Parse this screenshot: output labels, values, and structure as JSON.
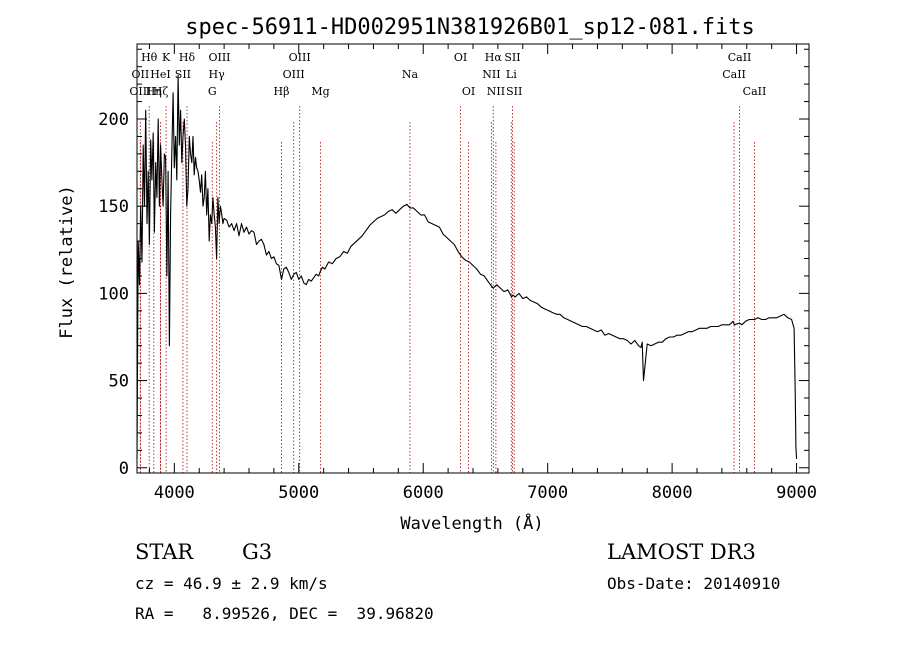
{
  "chart_data": {
    "type": "line",
    "title": "spec-56911-HD002951N381926B01_sp12-081.fits",
    "xlabel": "Wavelength (Å)",
    "ylabel": "Flux (relative)",
    "xlim": [
      3700,
      9100
    ],
    "ylim": [
      -3,
      243
    ],
    "x_ticks": [
      4000,
      5000,
      6000,
      7000,
      8000,
      9000
    ],
    "y_ticks": [
      0,
      50,
      100,
      150,
      200
    ],
    "grid": false,
    "legend": "none",
    "series": [
      {
        "name": "flux",
        "x": [
          3700,
          3710,
          3720,
          3730,
          3740,
          3750,
          3760,
          3770,
          3780,
          3790,
          3800,
          3810,
          3820,
          3830,
          3840,
          3850,
          3860,
          3870,
          3880,
          3890,
          3900,
          3910,
          3920,
          3930,
          3940,
          3950,
          3960,
          3970,
          3980,
          3990,
          4000,
          4010,
          4020,
          4030,
          4040,
          4050,
          4060,
          4070,
          4080,
          4090,
          4100,
          4110,
          4120,
          4130,
          4140,
          4150,
          4160,
          4170,
          4180,
          4190,
          4200,
          4210,
          4220,
          4230,
          4240,
          4250,
          4260,
          4270,
          4280,
          4290,
          4300,
          4310,
          4320,
          4330,
          4340,
          4350,
          4360,
          4370,
          4380,
          4390,
          4400,
          4420,
          4440,
          4460,
          4480,
          4500,
          4520,
          4540,
          4560,
          4580,
          4600,
          4620,
          4640,
          4660,
          4680,
          4700,
          4720,
          4740,
          4760,
          4780,
          4800,
          4820,
          4840,
          4861,
          4880,
          4900,
          4920,
          4940,
          4960,
          4980,
          5000,
          5020,
          5040,
          5060,
          5080,
          5100,
          5120,
          5140,
          5160,
          5175,
          5190,
          5210,
          5240,
          5270,
          5300,
          5330,
          5360,
          5390,
          5420,
          5450,
          5480,
          5510,
          5540,
          5570,
          5600,
          5630,
          5660,
          5690,
          5720,
          5750,
          5780,
          5810,
          5840,
          5870,
          5893,
          5920,
          5950,
          5980,
          6010,
          6040,
          6070,
          6100,
          6130,
          6160,
          6190,
          6220,
          6250,
          6280,
          6310,
          6340,
          6370,
          6400,
          6430,
          6460,
          6490,
          6520,
          6550,
          6563,
          6590,
          6620,
          6650,
          6680,
          6710,
          6720,
          6740,
          6770,
          6800,
          6830,
          6860,
          6890,
          6920,
          6950,
          6980,
          7010,
          7040,
          7070,
          7100,
          7130,
          7160,
          7190,
          7220,
          7250,
          7280,
          7310,
          7340,
          7370,
          7400,
          7430,
          7460,
          7490,
          7520,
          7550,
          7580,
          7610,
          7640,
          7670,
          7700,
          7730,
          7750,
          7760,
          7770,
          7800,
          7830,
          7860,
          7890,
          7920,
          7950,
          7980,
          8010,
          8040,
          8070,
          8100,
          8130,
          8160,
          8190,
          8220,
          8250,
          8280,
          8310,
          8340,
          8370,
          8400,
          8430,
          8460,
          8490,
          8500,
          8542,
          8560,
          8590,
          8620,
          8662,
          8690,
          8720,
          8750,
          8780,
          8810,
          8840,
          8870,
          8900,
          8930,
          8960,
          8980,
          8990,
          8995,
          9000
        ],
        "y": [
          5,
          130,
          105,
          150,
          118,
          185,
          150,
          205,
          140,
          170,
          128,
          188,
          165,
          192,
          135,
          175,
          155,
          200,
          150,
          185,
          165,
          150,
          180,
          178,
          110,
          170,
          70,
          145,
          180,
          215,
          172,
          190,
          165,
          225,
          185,
          205,
          175,
          190,
          200,
          185,
          150,
          160,
          190,
          180,
          175,
          190,
          168,
          178,
          172,
          170,
          165,
          158,
          168,
          150,
          155,
          170,
          145,
          160,
          130,
          145,
          140,
          155,
          145,
          138,
          120,
          155,
          140,
          150,
          146,
          140,
          143,
          142,
          138,
          140,
          136,
          140,
          133,
          140,
          135,
          138,
          134,
          136,
          135,
          128,
          130,
          131,
          128,
          122,
          124,
          120,
          121,
          117,
          116,
          108,
          114,
          115,
          112,
          108,
          111,
          112,
          108,
          110,
          106,
          105,
          108,
          107,
          109,
          111,
          110,
          113,
          115,
          114,
          118,
          117,
          120,
          121,
          124,
          123,
          127,
          129,
          131,
          133,
          136,
          139,
          141,
          143,
          144,
          145,
          147,
          148,
          146,
          148,
          150,
          151,
          149,
          149,
          147,
          145,
          145,
          141,
          140,
          139,
          138,
          134,
          132,
          130,
          128,
          124,
          121,
          119,
          118,
          116,
          114,
          111,
          110,
          107,
          104,
          103,
          105,
          103,
          101,
          102,
          98,
          99,
          98,
          100,
          97,
          98,
          96,
          95,
          94,
          92,
          91,
          90,
          89,
          88,
          88,
          86,
          85,
          84,
          83,
          82,
          81,
          81,
          80,
          79,
          78,
          79,
          76,
          77,
          76,
          75,
          74,
          74,
          73,
          71,
          73,
          70,
          69,
          72,
          50,
          71,
          70,
          71,
          72,
          72,
          74,
          75,
          75,
          76,
          76,
          77,
          78,
          78,
          79,
          80,
          80,
          80,
          81,
          81,
          81,
          82,
          82,
          82,
          84,
          82,
          83,
          82,
          84,
          85,
          85,
          86,
          85,
          85,
          86,
          86,
          86,
          87,
          88,
          86,
          85,
          80,
          40,
          12,
          5
        ]
      }
    ],
    "lines": [
      {
        "label": "Hθ",
        "wl": 3798,
        "row": 1
      },
      {
        "label": "OII",
        "wl": 3727,
        "row": 2
      },
      {
        "label": "OIII",
        "wl": 3727,
        "row": 3
      },
      {
        "label": "K",
        "wl": 3934,
        "row": 1
      },
      {
        "label": "HeI",
        "wl": 3889,
        "row": 2
      },
      {
        "label": "Hη",
        "wl": 3835,
        "row": 3
      },
      {
        "label": "Hζ",
        "wl": 3889,
        "row": 3
      },
      {
        "label": "SII",
        "wl": 4069,
        "row": 2
      },
      {
        "label": "Hδ",
        "wl": 4102,
        "row": 1
      },
      {
        "label": "OIII",
        "wl": 4363,
        "row": 1
      },
      {
        "label": "Hγ",
        "wl": 4340,
        "row": 2
      },
      {
        "label": "G",
        "wl": 4305,
        "row": 3
      },
      {
        "label": "Hβ",
        "wl": 4861,
        "row": 3
      },
      {
        "label": "OIII",
        "wl": 5007,
        "row": 1
      },
      {
        "label": "OIII",
        "wl": 4959,
        "row": 2
      },
      {
        "label": "Mg",
        "wl": 5175,
        "row": 3
      },
      {
        "label": "Na",
        "wl": 5893,
        "row": 2
      },
      {
        "label": "OI",
        "wl": 6300,
        "row": 1
      },
      {
        "label": "OI",
        "wl": 6364,
        "row": 3
      },
      {
        "label": "Hα",
        "wl": 6563,
        "row": 1
      },
      {
        "label": "NII",
        "wl": 6548,
        "row": 2
      },
      {
        "label": "NII",
        "wl": 6584,
        "row": 3
      },
      {
        "label": "SII",
        "wl": 6717,
        "row": 1
      },
      {
        "label": "Li",
        "wl": 6708,
        "row": 2
      },
      {
        "label": "SII",
        "wl": 6731,
        "row": 3
      },
      {
        "label": "CaII",
        "wl": 8542,
        "row": 1
      },
      {
        "label": "CaII",
        "wl": 8498,
        "row": 2
      },
      {
        "label": "CaII",
        "wl": 8662,
        "row": 3
      }
    ]
  },
  "info": {
    "object_type": "STAR",
    "subclass": "G3",
    "survey": "LAMOST DR3",
    "redshift": "cz = 46.9 ± 2.9 km/s",
    "obs_date": "Obs-Date: 20140910",
    "coords": "RA =   8.99526, DEC =  39.96820"
  }
}
